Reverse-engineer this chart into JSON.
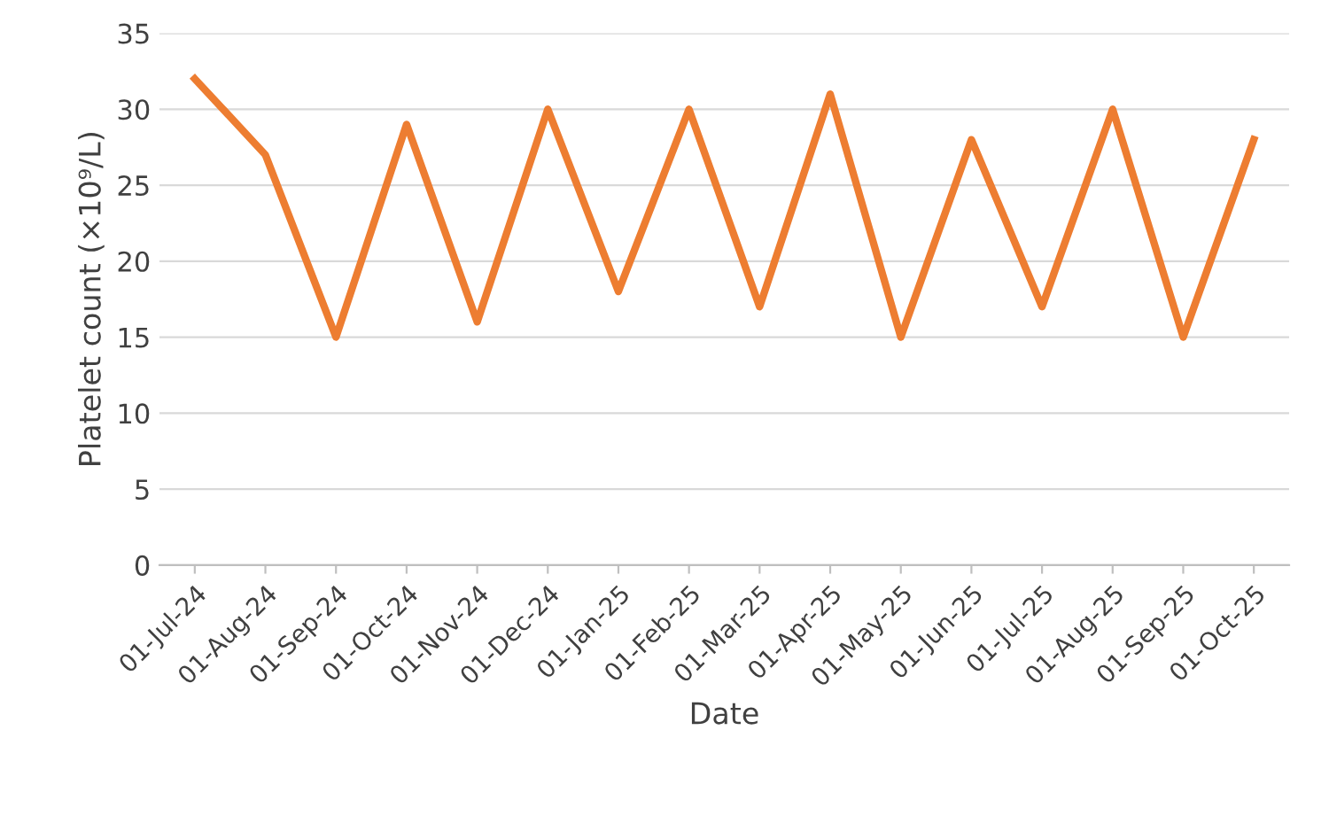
{
  "chart_data": {
    "type": "line",
    "xlabel": "Date",
    "ylabel": "Platelet count (×10⁹/L)",
    "categories": [
      "01-Jul-24",
      "01-Aug-24",
      "01-Sep-24",
      "01-Oct-24",
      "01-Nov-24",
      "01-Dec-24",
      "01-Jan-25",
      "01-Feb-25",
      "01-Mar-25",
      "01-Apr-25",
      "01-May-25",
      "01-Jun-25",
      "01-Jul-25",
      "01-Aug-25",
      "01-Sep-25",
      "01-Oct-25"
    ],
    "series": [
      {
        "color": "#ed7d31",
        "values": [
          32,
          27,
          15,
          29,
          16,
          30,
          18,
          30,
          17,
          31,
          15,
          28,
          17,
          30,
          15,
          28
        ]
      }
    ],
    "ylim": [
      0,
      35
    ],
    "yticks": [
      0,
      5,
      10,
      15,
      20,
      25,
      30,
      35
    ],
    "grid": "y",
    "marker": "none",
    "line_style": "solid",
    "legend": false
  }
}
